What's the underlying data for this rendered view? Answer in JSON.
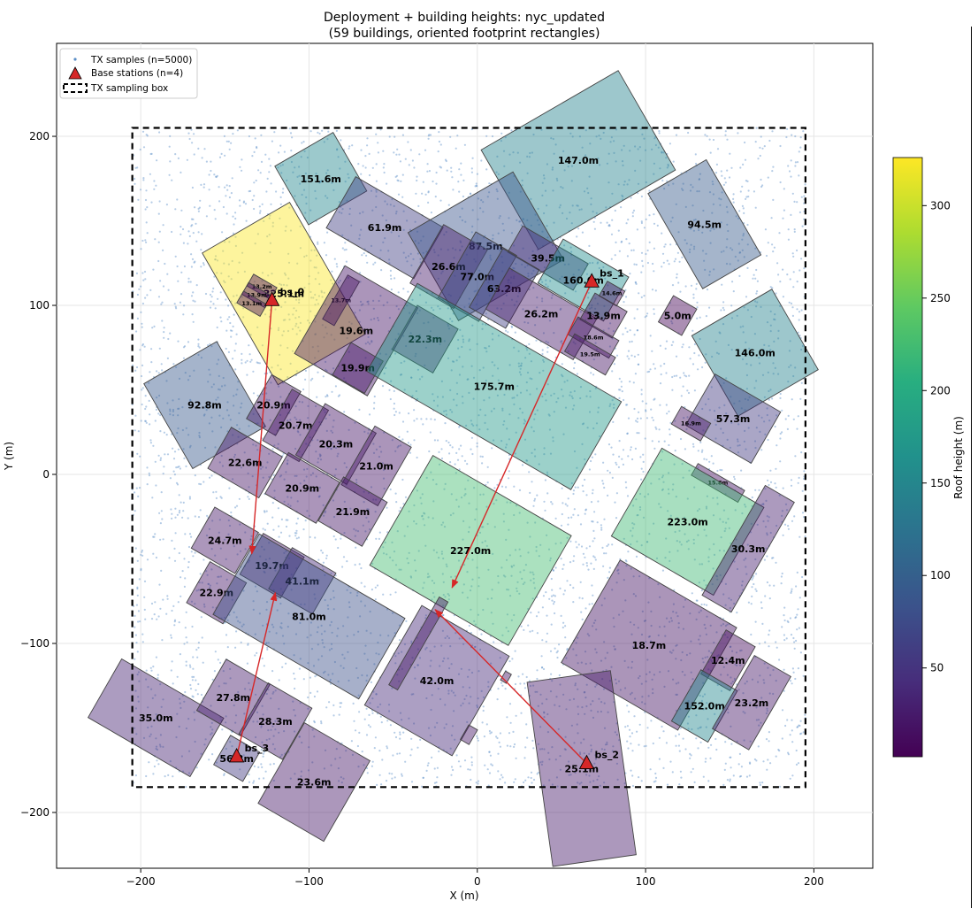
{
  "chart_data": {
    "type": "scatter",
    "title": "Deployment + building heights: nyc_updated",
    "subtitle": "(59 buildings, oriented footprint rectangles)",
    "xlabel": "X (m)",
    "ylabel": "Y (m)",
    "xlim": [
      -250,
      235
    ],
    "ylim": [
      -233,
      255
    ],
    "xticks": [
      -200,
      -100,
      0,
      100,
      200
    ],
    "yticks": [
      -200,
      -100,
      0,
      100,
      200
    ],
    "xtick_labels": [
      "−200",
      "−100",
      "0",
      "100",
      "200"
    ],
    "ytick_labels": [
      "−200",
      "−100",
      "0",
      "100",
      "200"
    ],
    "grid": true,
    "legend_position": "top-left",
    "legend": [
      "TX samples (n=5000)",
      "Base stations (n=4)",
      "TX sampling box"
    ],
    "tx_samples": {
      "count": 5000,
      "color": "#5b8fc7"
    },
    "tx_box": {
      "x": [
        -205,
        195
      ],
      "y": [
        -185,
        205
      ]
    },
    "colorbar": {
      "label": "Roof height (m)",
      "colormap": "viridis",
      "range": [
        2,
        326
      ],
      "ticks": [
        50,
        100,
        150,
        200,
        250,
        300
      ]
    },
    "base_stations": [
      {
        "name": "bs_0",
        "x": -122,
        "y": 103
      },
      {
        "name": "bs_1",
        "x": 68,
        "y": 114
      },
      {
        "name": "bs_2",
        "x": 65,
        "y": -171
      },
      {
        "name": "bs_3",
        "x": -143,
        "y": -167
      }
    ],
    "arrows": [
      {
        "from": [
          -122,
          103
        ],
        "to": [
          -134,
          -47
        ]
      },
      {
        "from": [
          68,
          114
        ],
        "to": [
          -15,
          -67
        ]
      },
      {
        "from": [
          65,
          -171
        ],
        "to": [
          -25,
          -80
        ]
      },
      {
        "from": [
          -143,
          -167
        ],
        "to": [
          -120,
          -70
        ]
      }
    ],
    "buildings": [
      {
        "label": "147.0m",
        "h": 147.0,
        "cx": 60,
        "cy": 186,
        "w": 94,
        "d": 68,
        "a": 30
      },
      {
        "label": "151.6m",
        "h": 151.6,
        "cx": -93,
        "cy": 175,
        "w": 40,
        "d": 40,
        "a": 30
      },
      {
        "label": "61.9m",
        "h": 61.9,
        "cx": -55,
        "cy": 146,
        "w": 60,
        "d": 35,
        "a": -30
      },
      {
        "label": "94.5m",
        "h": 94.5,
        "cx": 135,
        "cy": 148,
        "w": 40,
        "d": 65,
        "a": 30
      },
      {
        "label": "87.5m",
        "h": 87.5,
        "cx": 5,
        "cy": 135,
        "w": 72,
        "d": 60,
        "a": 30
      },
      {
        "label": "39.5m",
        "h": 39.5,
        "cx": 42,
        "cy": 128,
        "w": 45,
        "d": 18,
        "a": -30
      },
      {
        "label": "26.6m",
        "h": 26.6,
        "cx": -17,
        "cy": 123,
        "w": 30,
        "d": 40,
        "a": -30
      },
      {
        "label": "77.0m",
        "h": 77.0,
        "cx": 0,
        "cy": 117,
        "w": 28,
        "d": 45,
        "a": -30
      },
      {
        "label": "63.2m",
        "h": 63.2,
        "cx": 16,
        "cy": 110,
        "w": 25,
        "d": 40,
        "a": -30
      },
      {
        "label": "160.6m",
        "h": 160.6,
        "cx": 63,
        "cy": 115,
        "w": 45,
        "d": 30,
        "a": -30
      },
      {
        "label": "14.6m",
        "h": 14.6,
        "cx": 80,
        "cy": 107,
        "w": 12,
        "d": 10,
        "a": -30
      },
      {
        "label": "26.2m",
        "h": 26.2,
        "cx": 38,
        "cy": 95,
        "w": 60,
        "d": 28,
        "a": -30
      },
      {
        "label": "13.9m",
        "h": 13.9,
        "cx": 75,
        "cy": 94,
        "w": 22,
        "d": 18,
        "a": -30
      },
      {
        "label": "18.6m",
        "h": 18.6,
        "cx": 69,
        "cy": 81,
        "w": 28,
        "d": 12,
        "a": -30
      },
      {
        "label": "19.5m",
        "h": 19.5,
        "cx": 67,
        "cy": 71,
        "w": 28,
        "d": 12,
        "a": -30
      },
      {
        "label": "5.0m",
        "h": 5.0,
        "cx": 119,
        "cy": 94,
        "w": 16,
        "d": 18,
        "a": -30
      },
      {
        "label": "325.1m",
        "h": 325.1,
        "cx": -115,
        "cy": 107,
        "w": 60,
        "d": 90,
        "a": 30
      },
      {
        "label": "13.2m",
        "h": 13.2,
        "cx": -128,
        "cy": 111,
        "w": 16,
        "d": 8,
        "a": -30
      },
      {
        "label": "13.9m",
        "h": 13.9,
        "cx": -131,
        "cy": 106,
        "w": 16,
        "d": 8,
        "a": -30
      },
      {
        "label": "13.1m",
        "h": 13.1,
        "cx": -134,
        "cy": 101,
        "w": 16,
        "d": 8,
        "a": -30
      },
      {
        "label": "13.7m",
        "h": 13.7,
        "cx": -81,
        "cy": 103,
        "w": 8,
        "d": 30,
        "a": -30
      },
      {
        "label": "19.6m",
        "h": 19.6,
        "cx": -72,
        "cy": 85,
        "w": 50,
        "d": 60,
        "a": -30
      },
      {
        "label": "22.3m",
        "h": 22.3,
        "cx": -31,
        "cy": 80,
        "w": 28,
        "d": 30,
        "a": -30
      },
      {
        "label": "19.9m",
        "h": 19.9,
        "cx": -71,
        "cy": 63,
        "w": 22,
        "d": 22,
        "a": -30
      },
      {
        "label": "175.7m",
        "h": 175.7,
        "cx": 10,
        "cy": 52,
        "w": 140,
        "d": 60,
        "a": -30
      },
      {
        "label": "146.0m",
        "h": 146.0,
        "cx": 165,
        "cy": 72,
        "w": 55,
        "d": 55,
        "a": 30
      },
      {
        "label": "57.3m",
        "h": 57.3,
        "cx": 152,
        "cy": 33,
        "w": 45,
        "d": 35,
        "a": -30
      },
      {
        "label": "16.9m",
        "h": 16.9,
        "cx": 127,
        "cy": 30,
        "w": 20,
        "d": 12,
        "a": -30
      },
      {
        "label": "92.8m",
        "h": 92.8,
        "cx": -162,
        "cy": 41,
        "w": 50,
        "d": 58,
        "a": 30
      },
      {
        "label": "20.9m",
        "h": 20.9,
        "cx": -121,
        "cy": 41,
        "w": 20,
        "d": 30,
        "a": -30
      },
      {
        "label": "20.7m",
        "h": 20.7,
        "cx": -108,
        "cy": 29,
        "w": 25,
        "d": 35,
        "a": -30
      },
      {
        "label": "20.3m",
        "h": 20.3,
        "cx": -84,
        "cy": 18,
        "w": 35,
        "d": 35,
        "a": -30
      },
      {
        "label": "21.0m",
        "h": 21.0,
        "cx": -60,
        "cy": 5,
        "w": 25,
        "d": 40,
        "a": -30
      },
      {
        "label": "22.6m",
        "h": 22.6,
        "cx": -138,
        "cy": 7,
        "w": 35,
        "d": 28,
        "a": -30
      },
      {
        "label": "20.9m",
        "h": 20.9,
        "cx": -104,
        "cy": -8,
        "w": 35,
        "d": 28,
        "a": -30
      },
      {
        "label": "21.9m",
        "h": 21.9,
        "cx": -74,
        "cy": -22,
        "w": 30,
        "d": 30,
        "a": -30
      },
      {
        "label": "227.0m",
        "h": 227.0,
        "cx": -4,
        "cy": -45,
        "w": 95,
        "d": 75,
        "a": -30
      },
      {
        "label": "15.8m",
        "h": 15.8,
        "cx": 143,
        "cy": -5,
        "w": 32,
        "d": 8,
        "a": -30
      },
      {
        "label": "223.0m",
        "h": 223.0,
        "cx": 125,
        "cy": -28,
        "w": 70,
        "d": 60,
        "a": -30
      },
      {
        "label": "30.3m",
        "h": 30.3,
        "cx": 161,
        "cy": -44,
        "w": 20,
        "d": 75,
        "a": -30
      },
      {
        "label": "24.7m",
        "h": 24.7,
        "cx": -150,
        "cy": -39,
        "w": 30,
        "d": 28,
        "a": -30
      },
      {
        "label": "19.7m",
        "h": 19.7,
        "cx": -122,
        "cy": -54,
        "w": 28,
        "d": 28,
        "a": -30
      },
      {
        "label": "41.1m",
        "h": 41.1,
        "cx": -104,
        "cy": -63,
        "w": 30,
        "d": 28,
        "a": -30
      },
      {
        "label": "22.9m",
        "h": 22.9,
        "cx": -155,
        "cy": -70,
        "w": 25,
        "d": 28,
        "a": -30
      },
      {
        "label": "81.0m",
        "h": 81.0,
        "cx": -100,
        "cy": -84,
        "w": 100,
        "d": 55,
        "a": -30
      },
      {
        "label": "42.0m",
        "h": 42.0,
        "cx": -24,
        "cy": -122,
        "w": 60,
        "d": 68,
        "a": -30
      },
      {
        "label": "18.7m",
        "h": 18.7,
        "cx": 102,
        "cy": -101,
        "w": 80,
        "d": 70,
        "a": -30
      },
      {
        "label": "12.4m",
        "h": 12.4,
        "cx": 149,
        "cy": -110,
        "w": 20,
        "d": 30,
        "a": -30
      },
      {
        "label": "152.0m",
        "h": 152.0,
        "cx": 135,
        "cy": -137,
        "w": 25,
        "d": 35,
        "a": -30
      },
      {
        "label": "23.2m",
        "h": 23.2,
        "cx": 163,
        "cy": -135,
        "w": 25,
        "d": 50,
        "a": -30
      },
      {
        "label": "35.0m",
        "h": 35.0,
        "cx": -191,
        "cy": -144,
        "w": 70,
        "d": 40,
        "a": -30
      },
      {
        "label": "27.8m",
        "h": 27.8,
        "cx": -145,
        "cy": -132,
        "w": 30,
        "d": 35,
        "a": -30
      },
      {
        "label": "28.3m",
        "h": 28.3,
        "cx": -120,
        "cy": -146,
        "w": 30,
        "d": 35,
        "a": -30
      },
      {
        "label": "56.3m",
        "h": 56.3,
        "cx": -143,
        "cy": -168,
        "w": 20,
        "d": 20,
        "a": -30
      },
      {
        "label": "23.6m",
        "h": 23.6,
        "cx": -97,
        "cy": -182,
        "w": 45,
        "d": 55,
        "a": -30
      },
      {
        "label": "25.1m",
        "h": 25.1,
        "cx": 62,
        "cy": -174,
        "w": 50,
        "d": 110,
        "a": 8
      },
      {
        "label": "",
        "h": 22.0,
        "cx": -35,
        "cy": -100,
        "w": 60,
        "d": 6,
        "a": 60
      },
      {
        "label": "",
        "h": 20.0,
        "cx": -5,
        "cy": -154,
        "w": 6,
        "d": 10,
        "a": -30
      },
      {
        "label": "",
        "h": 20.0,
        "cx": 17,
        "cy": -120,
        "w": 4,
        "d": 6,
        "a": -30
      }
    ]
  }
}
